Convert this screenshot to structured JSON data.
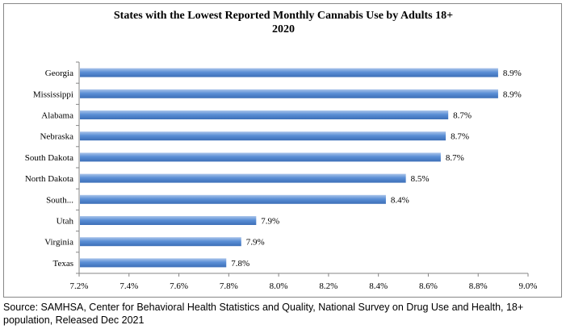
{
  "chart_data": {
    "type": "bar",
    "orientation": "horizontal",
    "title": "States with the Lowest Reported Monthly Cannabis Use by Adults 18+",
    "subtitle": "2020",
    "categories": [
      "Georgia",
      "Mississippi",
      "Alabama",
      "Nebraska",
      "South Dakota",
      "North Dakota",
      "South...",
      "Utah",
      "Virginia",
      "Texas"
    ],
    "values": [
      8.88,
      8.88,
      8.68,
      8.67,
      8.65,
      8.51,
      8.43,
      7.91,
      7.85,
      7.79
    ],
    "data_labels": [
      "8.9%",
      "8.9%",
      "8.7%",
      "8.7%",
      "8.7%",
      "8.5%",
      "8.4%",
      "7.9%",
      "7.9%",
      "7.8%"
    ],
    "xlim": [
      7.2,
      9.0
    ],
    "x_ticks": [
      7.2,
      7.4,
      7.6,
      7.8,
      8.0,
      8.2,
      8.4,
      8.6,
      8.8,
      9.0
    ],
    "x_tick_labels": [
      "7.2%",
      "7.4%",
      "7.6%",
      "7.8%",
      "8.0%",
      "8.2%",
      "8.4%",
      "8.6%",
      "8.8%",
      "9.0%"
    ],
    "xlabel": "",
    "ylabel": "",
    "grid": false,
    "legend": "none",
    "bar_color": "#4f81bd"
  },
  "source_note": "Source: SAMHSA, Center for Behavioral Health Statistics and Quality, National Survey on Drug Use and Health, 18+ population, Released Dec 2021"
}
